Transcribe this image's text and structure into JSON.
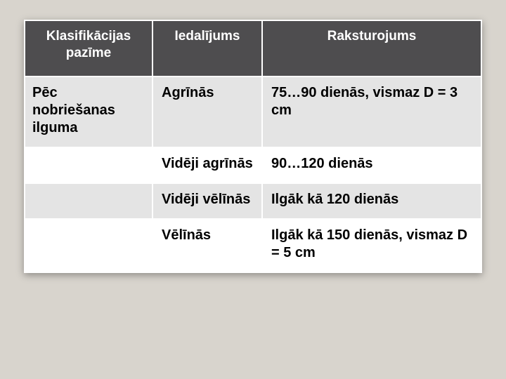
{
  "table": {
    "background_color": "#d8d4cd",
    "card_background": "#ffffff",
    "header_bg": "#4e4d4f",
    "header_fg": "#ffffff",
    "row_shaded_bg": "#e4e4e4",
    "row_plain_bg": "#ffffff",
    "border_color": "#ffffff",
    "font_family": "Arial",
    "header_fontsize": 19,
    "body_fontsize": 20,
    "column_widths_pct": [
      28,
      24,
      48
    ],
    "columns": [
      "Klasifikācijas pazīme",
      "Iedalījums",
      "Raksturojums"
    ],
    "rows": [
      {
        "shaded": true,
        "cells": [
          "Pēc nobriešanas ilguma",
          "Agrīnās",
          "75…90 dienās, vismaz D = 3 cm"
        ]
      },
      {
        "shaded": false,
        "cells": [
          "",
          "Vidēji agrīnās",
          "90…120 dienās"
        ]
      },
      {
        "shaded": true,
        "cells": [
          "",
          "Vidēji vēlīnās",
          "Ilgāk kā 120 dienās"
        ]
      },
      {
        "shaded": false,
        "cells": [
          "",
          "Vēlīnās",
          "Ilgāk kā 150 dienās, vismaz D = 5 cm"
        ]
      }
    ]
  }
}
